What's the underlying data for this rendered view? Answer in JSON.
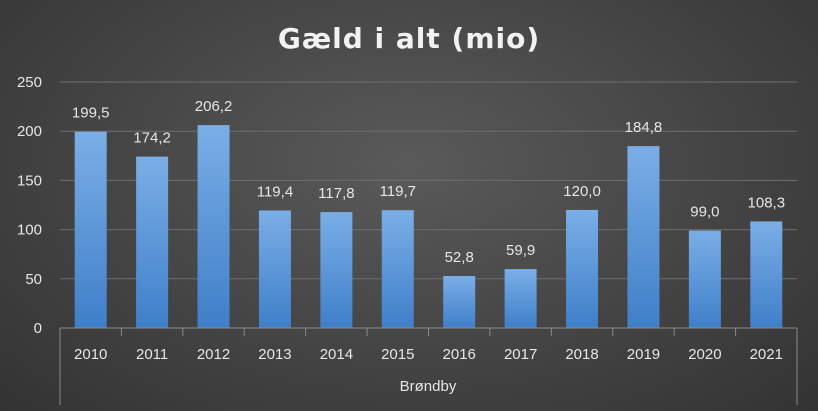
{
  "chart_data": {
    "type": "bar",
    "title": "Gæld i alt (mio)",
    "group_label": "Brøndby",
    "categories": [
      "2010",
      "2011",
      "2012",
      "2013",
      "2014",
      "2015",
      "2016",
      "2017",
      "2018",
      "2019",
      "2020",
      "2021"
    ],
    "values": [
      199.5,
      174.2,
      206.2,
      119.4,
      117.8,
      119.7,
      52.8,
      59.9,
      120.0,
      184.8,
      99.0,
      108.3
    ],
    "value_labels": [
      "199,5",
      "174,2",
      "206,2",
      "119,4",
      "117,8",
      "119,7",
      "52,8",
      "59,9",
      "120,0",
      "184,8",
      "99,0",
      "108,3"
    ],
    "yticks": [
      "0",
      "50",
      "100",
      "150",
      "200",
      "250"
    ],
    "ylim": [
      0,
      250
    ],
    "grid": true,
    "colors": {
      "bar_top": "#7aaee6",
      "bar_bottom": "#3f7fc9"
    }
  }
}
